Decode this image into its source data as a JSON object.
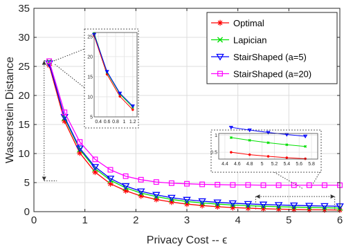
{
  "chart_data": {
    "type": "line",
    "xlabel": "Privacy Cost -- ϵ",
    "ylabel": "Wasserstein Distance",
    "xlim": [
      0,
      6
    ],
    "ylim": [
      0,
      35
    ],
    "xticks": [
      0,
      1,
      2,
      3,
      4,
      5,
      6
    ],
    "yticks": [
      0,
      5,
      10,
      15,
      20,
      25,
      30,
      35
    ],
    "grid": true,
    "legend_position": "top-right",
    "x": [
      0.3,
      0.6,
      0.9,
      1.2,
      1.5,
      1.8,
      2.1,
      2.4,
      2.7,
      3.0,
      3.3,
      3.6,
      3.9,
      4.2,
      4.5,
      4.8,
      5.1,
      5.4,
      5.7,
      6.0
    ],
    "series": [
      {
        "name": "Optimal",
        "color": "#ff0000",
        "marker": "asterisk",
        "values": [
          25.2,
          15.6,
          10.1,
          6.8,
          4.8,
          3.6,
          2.7,
          2.1,
          1.65,
          1.3,
          1.05,
          0.85,
          0.7,
          0.6,
          0.5,
          0.43,
          0.38,
          0.34,
          0.31,
          0.28
        ]
      },
      {
        "name": "Lapician",
        "color": "#00e000",
        "marker": "x",
        "values": [
          25.8,
          16.1,
          10.7,
          7.4,
          5.4,
          4.1,
          3.2,
          2.6,
          2.1,
          1.75,
          1.5,
          1.3,
          1.15,
          1.03,
          0.93,
          0.85,
          0.78,
          0.72,
          0.67,
          0.62
        ]
      },
      {
        "name": "StairShaped (a=5)",
        "color": "#0000ff",
        "marker": "triangle-down",
        "values": [
          25.5,
          16.3,
          10.9,
          7.7,
          5.7,
          4.4,
          3.5,
          2.9,
          2.4,
          2.05,
          1.8,
          1.6,
          1.45,
          1.33,
          1.23,
          1.15,
          1.08,
          1.02,
          0.97,
          0.93
        ]
      },
      {
        "name": "StairShaped (a=20)",
        "color": "#ff00ff",
        "marker": "square",
        "values": [
          25.9,
          17.1,
          12.0,
          9.0,
          7.2,
          6.1,
          5.5,
          5.1,
          4.9,
          4.8,
          4.7,
          4.65,
          4.6,
          4.6,
          4.55,
          4.55,
          4.55,
          4.55,
          4.55,
          4.55
        ]
      }
    ],
    "insets": [
      {
        "xlim": [
          0.3,
          1.3
        ],
        "ylim": [
          5,
          26
        ],
        "xticks": [
          0.4,
          0.6,
          0.8,
          1,
          1.2
        ],
        "xtick_labels": [
          "0.4",
          "0.6",
          "0.8",
          "1",
          "1.2"
        ],
        "yticks": [
          5,
          10,
          15,
          20,
          25
        ],
        "ytick_labels": [
          "5",
          "10",
          "15",
          "20",
          "25"
        ],
        "series": [
          "Optimal",
          "Lapician",
          "StairShaped (a=5)"
        ]
      },
      {
        "xlim": [
          4.3,
          5.9
        ],
        "ylim": [
          0.3,
          1.05
        ],
        "xticks": [
          4.4,
          4.6,
          4.8,
          5,
          5.2,
          5.4,
          5.6,
          5.8
        ],
        "xtick_labels": [
          "4.4",
          "4.6",
          "4.8",
          "5",
          "5.2",
          "5.4",
          "5.6",
          "5.8"
        ],
        "yticks": [
          0.5,
          1
        ],
        "ytick_labels": [
          "0.5",
          "1"
        ],
        "series": [
          "Optimal",
          "Lapician",
          "StairShaped (a=5)"
        ]
      }
    ]
  }
}
